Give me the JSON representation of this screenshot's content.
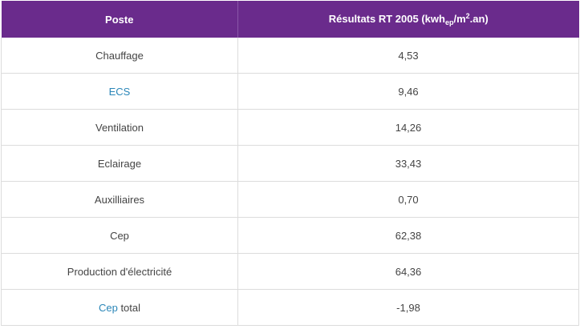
{
  "table": {
    "header": {
      "poste": "Poste",
      "results_prefix": "Résultats RT 2005 (kwh",
      "results_sub": "ep",
      "results_mid": "/m",
      "results_sup": "2",
      "results_suffix": ".an)"
    },
    "rows": [
      {
        "label": "Chauffage",
        "value": "4,53"
      },
      {
        "label": "ECS",
        "value": "9,46"
      },
      {
        "label": "Ventilation",
        "value": "14,26"
      },
      {
        "label": "Eclairage",
        "value": "33,43"
      },
      {
        "label": "Auxilliaires",
        "value": "0,70"
      },
      {
        "label": "Cep",
        "value": "62,38"
      },
      {
        "label": "Production d'électricité",
        "value": "64,36"
      },
      {
        "label_link": "Cep",
        "label_rest": " total",
        "value": "-1,98"
      }
    ]
  },
  "colors": {
    "header_bg": "#6a2b8c",
    "header_text": "#ffffff",
    "link": "#2a86b8",
    "body_text": "#444444",
    "grid": "#dcdcdc"
  }
}
